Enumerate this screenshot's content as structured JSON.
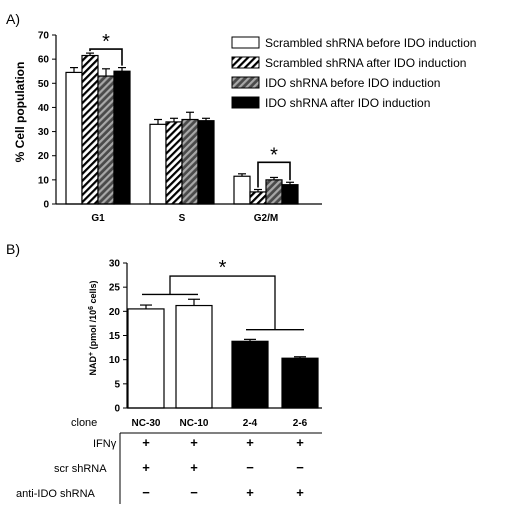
{
  "chart_data": [
    {
      "type": "bar",
      "panel_label": "A)",
      "ylabel": "% Cell population",
      "ylim": [
        0,
        70
      ],
      "yticks": [
        0,
        10,
        20,
        30,
        40,
        50,
        60,
        70
      ],
      "categories": [
        "G1",
        "S",
        "G2/M"
      ],
      "series": [
        {
          "name": "Scrambled shRNA before IDO induction",
          "values": [
            54.5,
            33,
            11.5
          ],
          "errors": [
            2,
            2,
            1
          ]
        },
        {
          "name": "Scrambled shRNA after IDO induction",
          "values": [
            61.5,
            34,
            5
          ],
          "errors": [
            1,
            1.5,
            1
          ]
        },
        {
          "name": "IDO shRNA before IDO induction",
          "values": [
            53,
            35,
            10
          ],
          "errors": [
            3,
            3,
            1
          ]
        },
        {
          "name": "IDO shRNA after IDO induction",
          "values": [
            55,
            34.5,
            8
          ],
          "errors": [
            1.5,
            1,
            1
          ]
        }
      ],
      "significance": [
        {
          "category": "G1",
          "from_series": 1,
          "to_series": 3,
          "label": "*"
        },
        {
          "category": "G2/M",
          "from_series": 1,
          "to_series": 3,
          "label": "*"
        }
      ],
      "colors": {
        "bar1": "#ffffff",
        "bar2": "#ffffff",
        "bar3": "#8a8a8a",
        "bar4": "#000000"
      }
    },
    {
      "type": "bar",
      "panel_label": "B)",
      "ylabel": "NAD+ (pmol /10^6 cells)",
      "ylim": [
        0,
        30
      ],
      "yticks": [
        0,
        5,
        10,
        15,
        20,
        25,
        30
      ],
      "row_label": "clone",
      "categories": [
        "NC-30",
        "NC-10",
        "2-4",
        "2-6"
      ],
      "values": [
        20.5,
        21.2,
        13.8,
        10.3
      ],
      "errors": [
        0.8,
        1.3,
        0.4,
        0.3
      ],
      "bar_colors": [
        "#ffffff",
        "#ffffff",
        "#000000",
        "#000000"
      ],
      "significance_label": "*",
      "table": {
        "rows": [
          {
            "label": "IFNγ",
            "signs": [
              "+",
              "+",
              "+",
              "+"
            ]
          },
          {
            "label": "scr shRNA",
            "signs": [
              "+",
              "+",
              "−",
              "−"
            ]
          },
          {
            "label": "anti-IDO shRNA",
            "signs": [
              "−",
              "−",
              "+",
              "+"
            ]
          }
        ]
      }
    }
  ]
}
